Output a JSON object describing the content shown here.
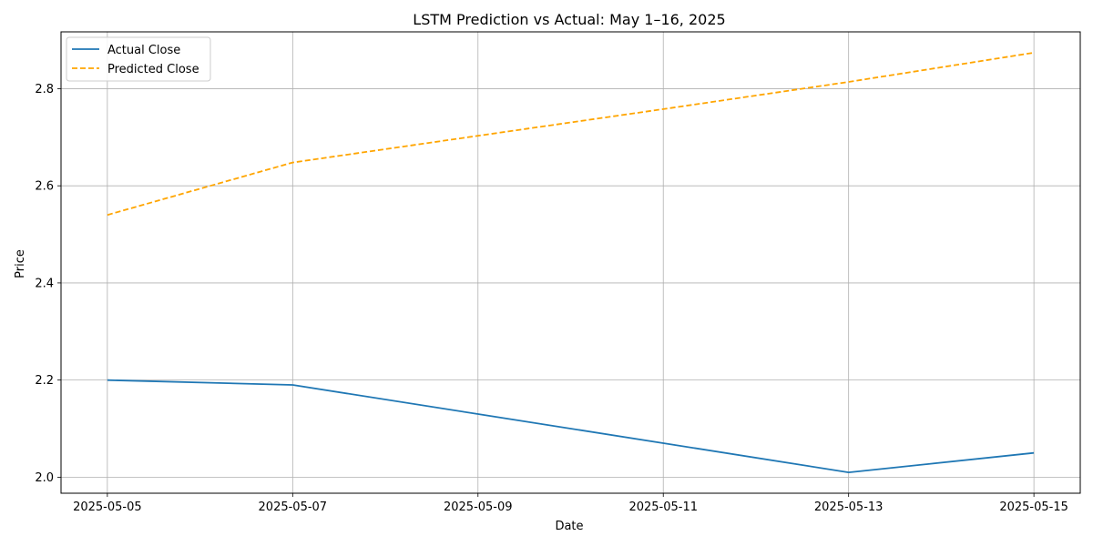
{
  "chart_data": {
    "type": "line",
    "title": "LSTM Prediction vs Actual: May 1–16, 2025",
    "xlabel": "Date",
    "ylabel": "Price",
    "x": [
      "2025-05-05",
      "2025-05-07",
      "2025-05-09",
      "2025-05-11",
      "2025-05-13",
      "2025-05-15"
    ],
    "x_ticks": [
      "2025-05-05",
      "2025-05-07",
      "2025-05-09",
      "2025-05-11",
      "2025-05-13",
      "2025-05-15"
    ],
    "y_ticks": [
      "2.0",
      "2.2",
      "2.4",
      "2.6",
      "2.8"
    ],
    "ylim": [
      1.967,
      2.917
    ],
    "xlim": [
      "2025-05-04T12:00",
      "2025-05-15T12:00"
    ],
    "grid": true,
    "legend_position": "top-left",
    "series": [
      {
        "name": "Actual Close",
        "color": "#1f77b4",
        "style": "solid",
        "values": [
          2.2,
          2.19,
          2.13,
          2.07,
          2.01,
          2.05
        ]
      },
      {
        "name": "Predicted Close",
        "color": "#ffa500",
        "style": "dashed",
        "values": [
          2.54,
          2.648,
          2.703,
          2.758,
          2.814,
          2.874
        ]
      }
    ]
  }
}
